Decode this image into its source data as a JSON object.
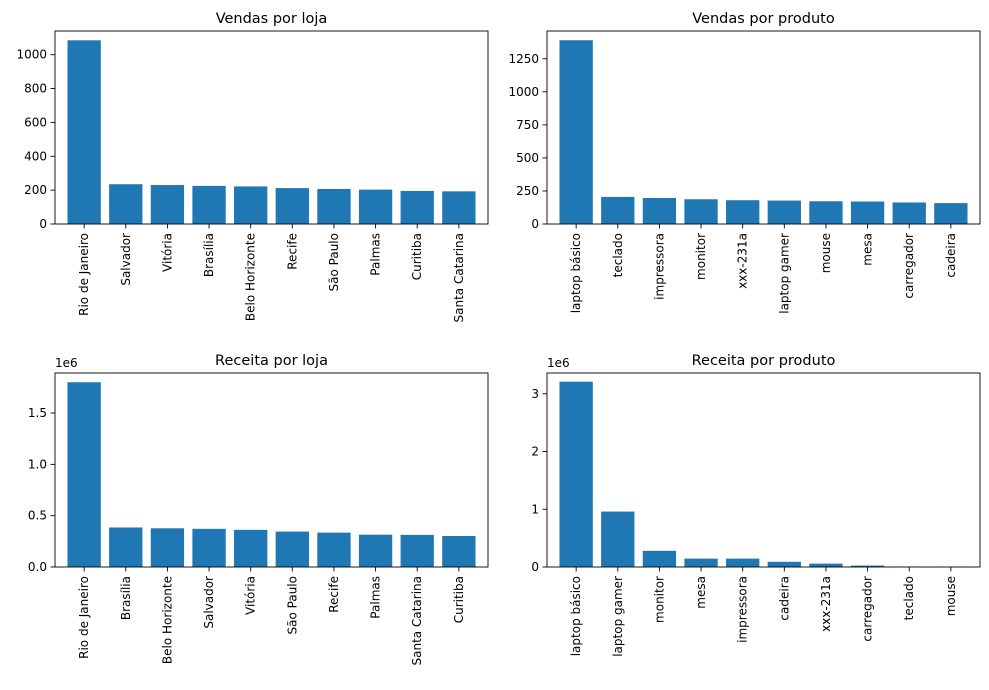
{
  "chart_data": [
    {
      "type": "bar",
      "title": "Vendas por loja",
      "xlabel": "",
      "ylabel": "",
      "scale_label": "",
      "ylim": [
        0,
        1140
      ],
      "yticks": [
        0,
        200,
        400,
        600,
        800,
        1000
      ],
      "ytick_labels": [
        "0",
        "200",
        "400",
        "600",
        "800",
        "1000"
      ],
      "categories": [
        "Rio de Janeiro",
        "Salvador",
        "Vitória",
        "Brasília",
        "Belo Horizonte",
        "Recife",
        "São Paulo",
        "Palmas",
        "Curitiba",
        "Santa Catarina"
      ],
      "values": [
        1085,
        235,
        230,
        225,
        222,
        212,
        207,
        203,
        195,
        193
      ],
      "color": "#1f77b4",
      "grid": false
    },
    {
      "type": "bar",
      "title": "Vendas por produto",
      "xlabel": "",
      "ylabel": "",
      "scale_label": "",
      "ylim": [
        0,
        1460
      ],
      "yticks": [
        0,
        250,
        500,
        750,
        1000,
        1250
      ],
      "ytick_labels": [
        "0",
        "250",
        "500",
        "750",
        "1000",
        "1250"
      ],
      "categories": [
        "laptop básico",
        "teclado",
        "impressora",
        "monitor",
        "xxx-231a",
        "laptop gamer",
        "mouse",
        "mesa",
        "carregador",
        "cadeira"
      ],
      "values": [
        1390,
        205,
        197,
        187,
        180,
        177,
        172,
        170,
        163,
        158
      ],
      "color": "#1f77b4",
      "grid": false
    },
    {
      "type": "bar",
      "title": "Receita por loja",
      "xlabel": "",
      "ylabel": "",
      "scale_label": "1e6",
      "ylim": [
        0,
        1.89
      ],
      "yticks": [
        0,
        0.5,
        1.0,
        1.5
      ],
      "ytick_labels": [
        "0.0",
        "0.5",
        "1.0",
        "1.5"
      ],
      "categories": [
        "Rio de Janeiro",
        "Brasília",
        "Belo Horizonte",
        "Salvador",
        "Vitória",
        "São Paulo",
        "Recife",
        "Palmas",
        "Santa Catarina",
        "Curitiba"
      ],
      "values": [
        1.8,
        0.385,
        0.377,
        0.372,
        0.362,
        0.345,
        0.335,
        0.315,
        0.313,
        0.302
      ],
      "color": "#1f77b4",
      "grid": false
    },
    {
      "type": "bar",
      "title": "Receita por produto",
      "xlabel": "",
      "ylabel": "",
      "scale_label": "1e6",
      "ylim": [
        0,
        3.36
      ],
      "yticks": [
        0,
        1,
        2,
        3
      ],
      "ytick_labels": [
        "0",
        "1",
        "2",
        "3"
      ],
      "categories": [
        "laptop básico",
        "laptop gamer",
        "monitor",
        "mesa",
        "impressora",
        "cadeira",
        "xxx-231a",
        "carregador",
        "teclado",
        "mouse"
      ],
      "values": [
        3.21,
        0.96,
        0.28,
        0.145,
        0.145,
        0.09,
        0.058,
        0.025,
        0.008,
        0.005
      ],
      "color": "#1f77b4",
      "grid": false
    }
  ]
}
